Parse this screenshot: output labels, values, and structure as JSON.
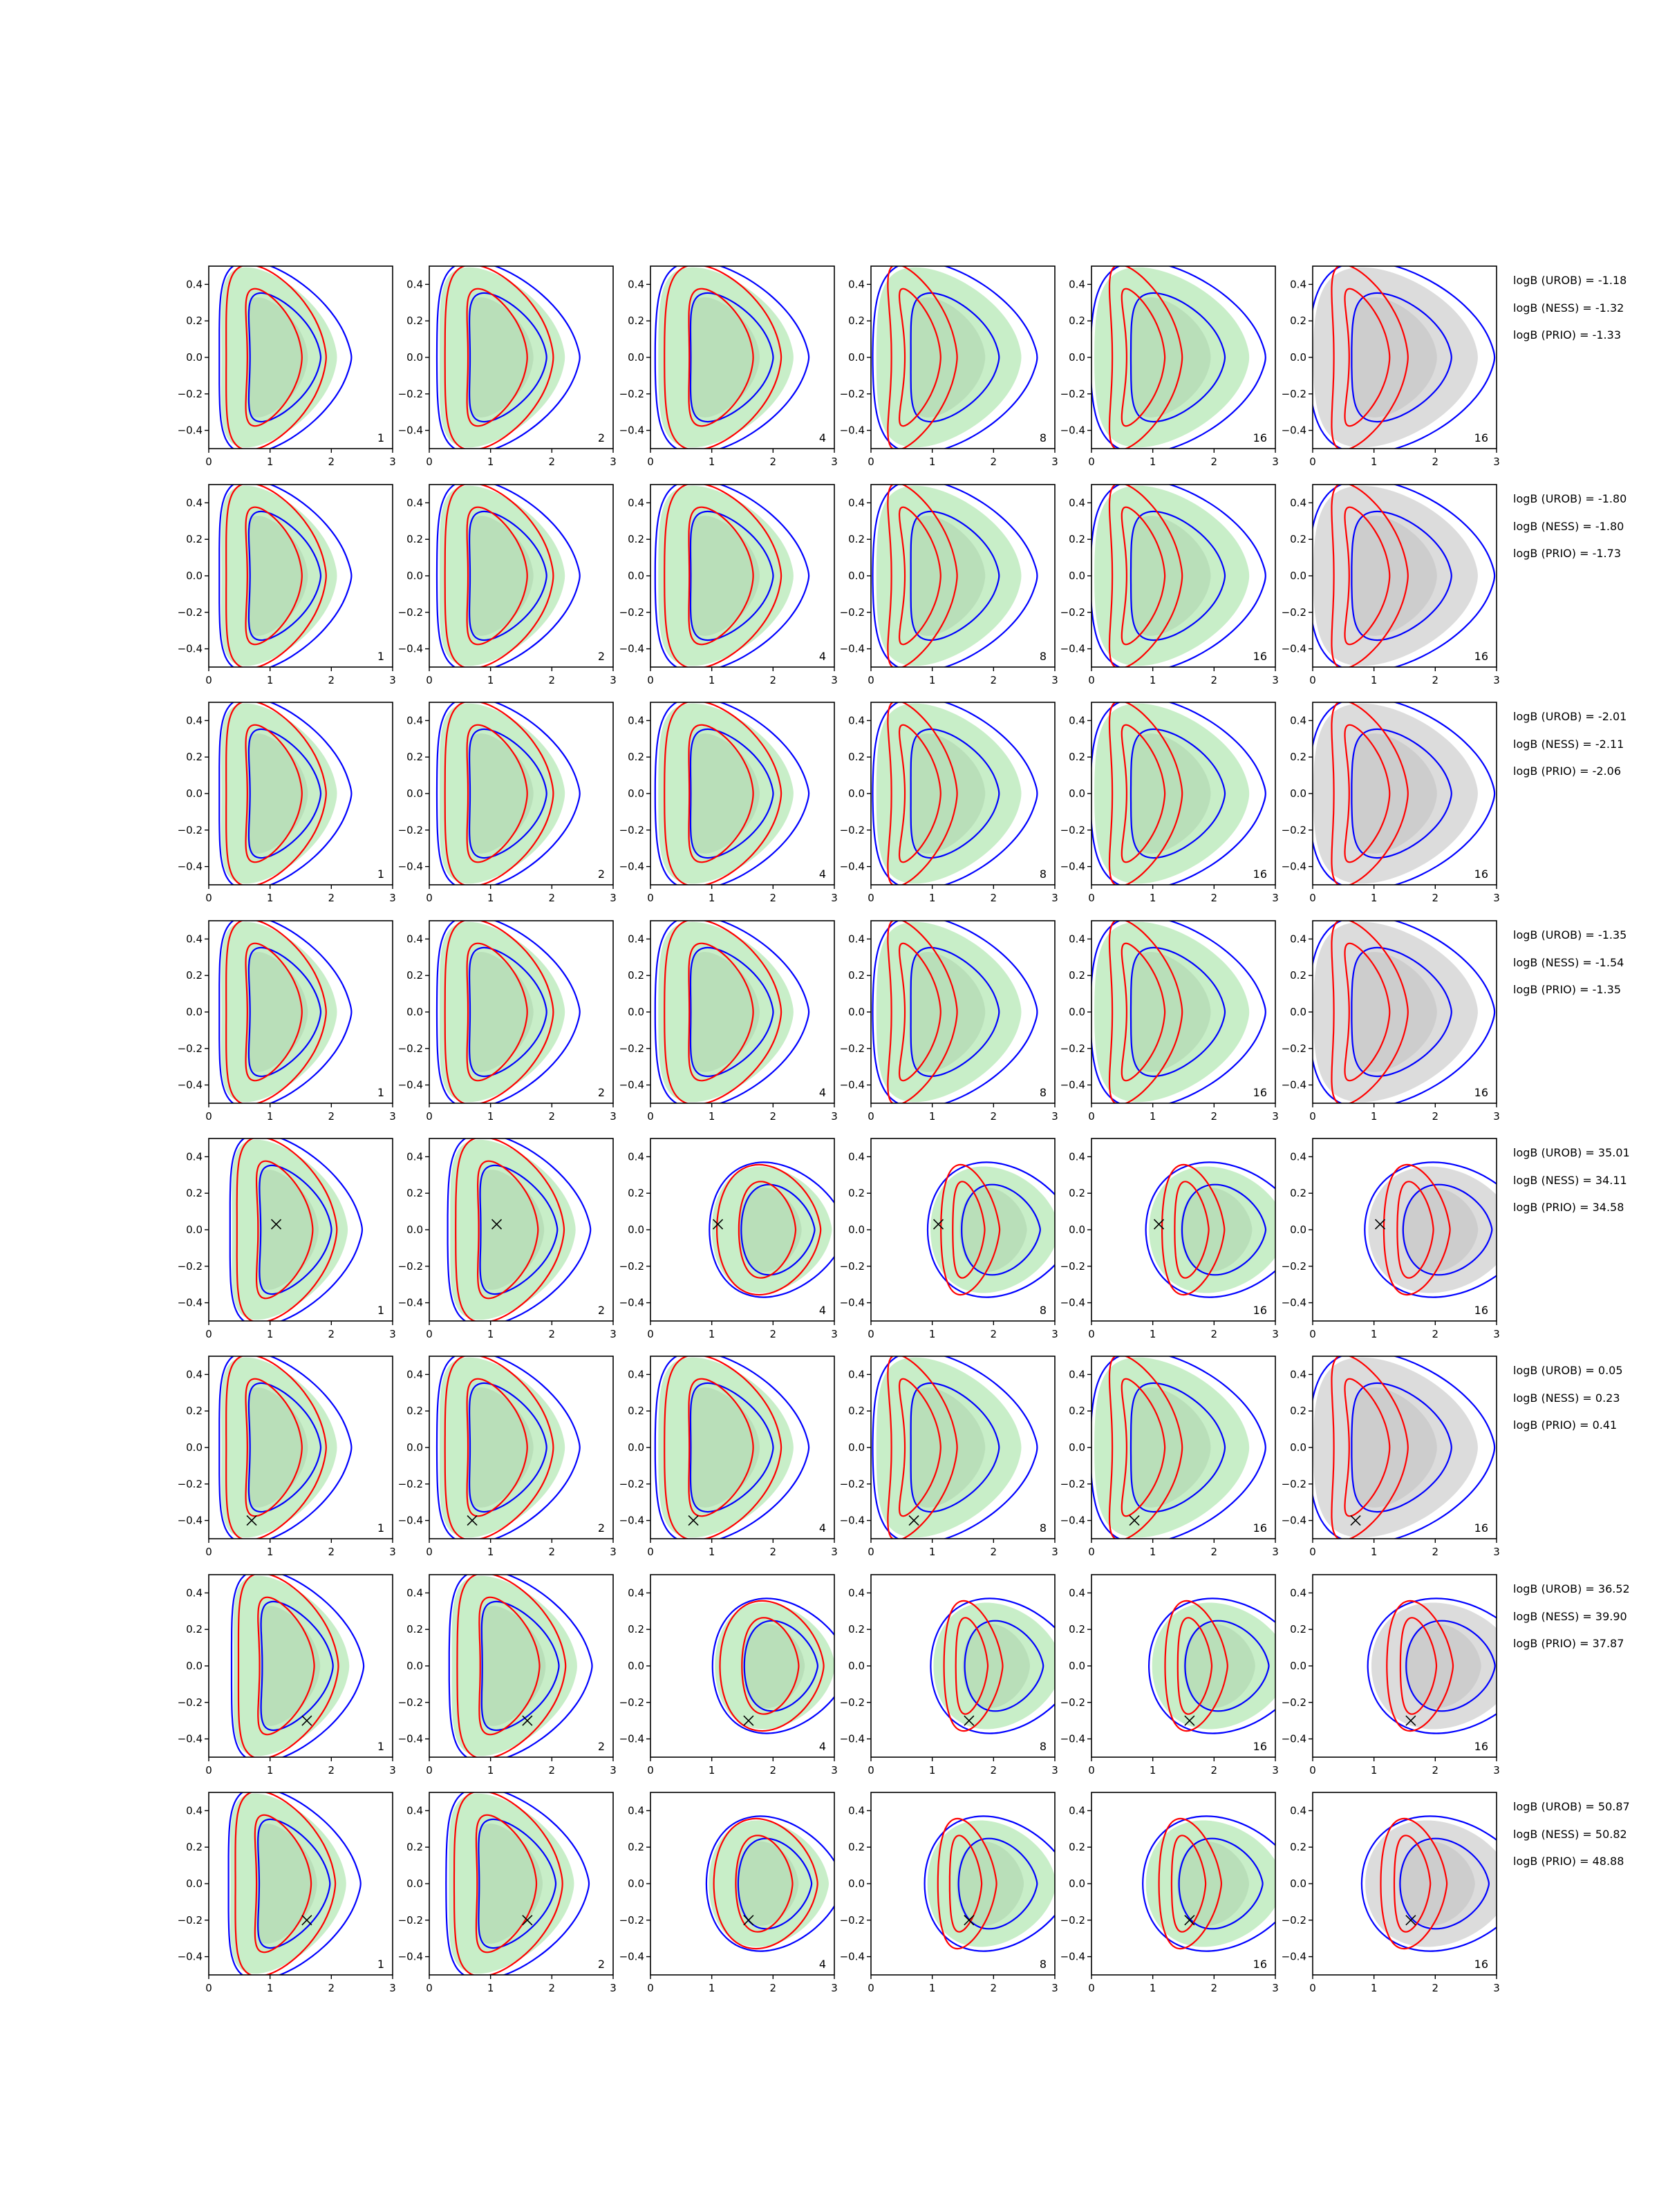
{
  "chart_data": {
    "type": "contour-grid",
    "rows": 8,
    "cols": 6,
    "xlim": [
      0,
      3
    ],
    "ylim": [
      -0.5,
      0.5
    ],
    "x_ticks": [
      0,
      1,
      2,
      3
    ],
    "x_tick_labels": [
      "0",
      "1",
      "2",
      "3"
    ],
    "y_ticks": [
      -0.4,
      -0.2,
      0.0,
      0.2,
      0.4
    ],
    "y_tick_labels": [
      "−0.4",
      "−0.2",
      "0.0",
      "0.2",
      "0.4"
    ],
    "panel_labels": [
      "1",
      "2",
      "4",
      "8",
      "16",
      "16"
    ],
    "grid": false,
    "colors": {
      "red_contour": "#ff0000",
      "blue_contour": "#0000ff",
      "green_fill": "#c8eec8",
      "gray_fill": "#dcdcdc",
      "marker": "#000000"
    },
    "marker_points": [
      null,
      null,
      null,
      null,
      {
        "x": 1.1,
        "y": 0.03
      },
      {
        "x": 0.7,
        "y": -0.4
      },
      {
        "x": 1.6,
        "y": -0.3
      },
      {
        "x": 1.6,
        "y": -0.2
      }
    ],
    "logB": [
      {
        "urob": "logB (UROB) = -1.18",
        "ness": "logB (NESS) = -1.32",
        "prio": "logB (PRIO) = -1.33"
      },
      {
        "urob": "logB (UROB) = -1.80",
        "ness": "logB (NESS) = -1.80",
        "prio": "logB (PRIO) = -1.73"
      },
      {
        "urob": "logB (UROB) = -2.01",
        "ness": "logB (NESS) = -2.11",
        "prio": "logB (PRIO) = -2.06"
      },
      {
        "urob": "logB (UROB) = -1.35",
        "ness": "logB (NESS) = -1.54",
        "prio": "logB (PRIO) = -1.35"
      },
      {
        "urob": "logB (UROB) = 35.01",
        "ness": "logB (NESS) = 34.11",
        "prio": "logB (PRIO) = 34.58"
      },
      {
        "urob": "logB (UROB) = 0.05",
        "ness": "logB (NESS) = 0.23",
        "prio": "logB (PRIO) = 0.41"
      },
      {
        "urob": "logB (UROB) = 36.52",
        "ness": "logB (NESS) = 39.90",
        "prio": "logB (PRIO) = 37.87"
      },
      {
        "urob": "logB (UROB) = 50.87",
        "ness": "logB (NESS) = 50.82",
        "prio": "logB (PRIO) = 48.88"
      }
    ]
  }
}
